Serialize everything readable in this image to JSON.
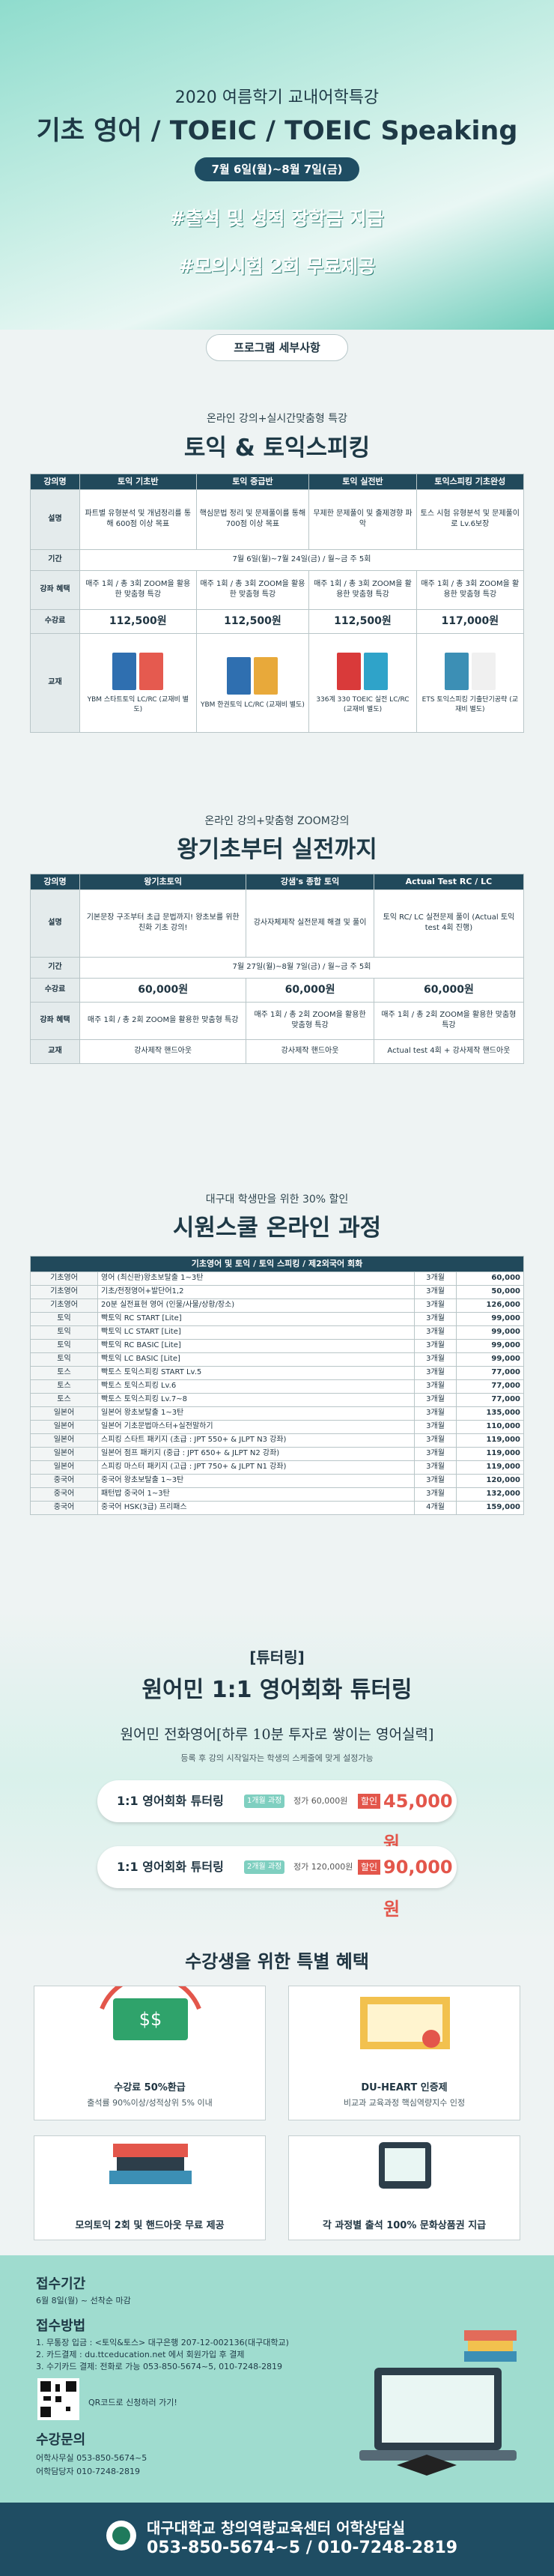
{
  "header": {
    "year_title": "2020 여름학기 교내어학특강",
    "main_title": "기초 영어 / TOEIC / TOEIC Speaking",
    "date": "7월 6일(월)~8월 7일(금)",
    "tag1": "#출석 및 성적 장학금 지급",
    "tag2": "#모의시험 2회 무료제공"
  },
  "program_heading": "프로그램 세부사항",
  "section1": {
    "subtitle": "온라인 강의+실시간맞춤형 특강",
    "title": "토익 & 토익스피킹",
    "table": {
      "headers": [
        "강의명",
        "토익 기초반",
        "토익 중급반",
        "토익 실전반",
        "토익스피킹 기초완성"
      ],
      "rows": [
        {
          "label": "설명",
          "cells": [
            "파트별 유형분석 및 개념정리를 통해 600점 이상 목표",
            "핵심문법 정리 및 문제풀이를 통해 700점 이상 목표",
            "무제한 문제풀이 및 출제경향 파악",
            "토스 시험 유형분석 및 문제풀이로 Lv.6보장"
          ]
        },
        {
          "label": "기간",
          "cells": [
            "7월 6일(월)~7월 24일(금) / 월~금 주 5회"
          ]
        },
        {
          "label": "강좌 혜택",
          "cells": [
            "매주 1회 / 총 3회 ZOOM을 활용한 맞춤형 특강",
            "매주 1회 / 총 3회 ZOOM을 활용한 맞춤형 특강",
            "매주 1회 / 총 3회 ZOOM을 활용한 맞춤형 특강",
            "매주 1회 / 총 3회 ZOOM을 활용한 맞춤형 특강"
          ]
        },
        {
          "label": "수강료",
          "cells": [
            "112,500원",
            "112,500원",
            "112,500원",
            "117,000원"
          ]
        },
        {
          "label": "교재",
          "cells": [
            "YBM 스타트토익 LC/RC (교재비 별도)",
            "YBM 한권토익 LC/RC (교재비 별도)",
            "336계 330 TOEIC 실전 LC/RC (교재비 별도)",
            "ETS 토익스피킹 기출단기공략 (교재비 별도)"
          ]
        }
      ]
    }
  },
  "section2": {
    "subtitle": "온라인 강의+맞춤형 ZOOM강의",
    "title": "왕기초부터 실전까지",
    "table": {
      "headers": [
        "강의명",
        "왕기초토익",
        "강샘's 종합 토익",
        "Actual Test RC / LC"
      ],
      "rows": [
        {
          "label": "설명",
          "cells": [
            "기본문장 구조부터 초급 문법까지! 왕초보를 위한 친화 기초 강의!",
            "강사자체제작 실전문제 해결 및 풀이",
            "토익 RC/ LC 실전문제 풀이 (Actual 토익 test 4회 진행)"
          ]
        },
        {
          "label": "기간",
          "cells": [
            "7월 27일(월)~8월 7일(금) / 월~금 주 5회"
          ]
        },
        {
          "label": "수강료",
          "cells": [
            "60,000원",
            "60,000원",
            "60,000원"
          ]
        },
        {
          "label": "강좌 혜택",
          "cells": [
            "매주 1회 / 총 2회 ZOOM을 활용한 맞춤형 특강",
            "매주 1회 / 총 2회 ZOOM을 활용한 맞춤형 특강",
            "매주 1회 / 총 2회 ZOOM을 활용한 맞춤형 특강"
          ]
        },
        {
          "label": "교재",
          "cells": [
            "강사제작 핸드아웃",
            "강사제작 핸드아웃",
            "Actual test 4회 + 강사제작 핸드아웃"
          ]
        }
      ]
    }
  },
  "section3": {
    "subtitle": "대구대 학생만을 위한 30% 할인",
    "title": "시원스쿨 온라인 과정",
    "table": {
      "header": "기초영어 및 토익 / 토익 스피킹 / 제2외국어 회화",
      "rows": [
        [
          "기초영어",
          "영어 (최신판)왕초보탈출 1~3탄",
          "3개월",
          "60,000"
        ],
        [
          "기초영어",
          "기초/전정영어+발단어1,2",
          "3개월",
          "50,000"
        ],
        [
          "기초영어",
          "20분 실전표현 영어 (인물/사물/상황/장소)",
          "3개월",
          "126,000"
        ],
        [
          "토익",
          "빡토익 RC START [Lite]",
          "3개월",
          "99,000"
        ],
        [
          "토익",
          "빡토익 LC START [Lite]",
          "3개월",
          "99,000"
        ],
        [
          "토익",
          "빡토익 RC BASIC [Lite]",
          "3개월",
          "99,000"
        ],
        [
          "토익",
          "빡토익 LC BASIC [Lite]",
          "3개월",
          "99,000"
        ],
        [
          "토스",
          "빡토스 토익스피킹 START Lv.5",
          "3개월",
          "77,000"
        ],
        [
          "토스",
          "빡토스 토익스피킹 Lv.6",
          "3개월",
          "77,000"
        ],
        [
          "토스",
          "빡토스 토익스피킹 Lv.7~8",
          "3개월",
          "77,000"
        ],
        [
          "일본어",
          "일본어 왕초보탈출 1~3탄",
          "3개월",
          "135,000"
        ],
        [
          "일본어",
          "일본어 기초문법마스터+실전말하기",
          "3개월",
          "110,000"
        ],
        [
          "일본어",
          "스피킹 스타트 패키지 (초급 : JPT 550+ & JLPT N3 강좌)",
          "3개월",
          "119,000"
        ],
        [
          "일본어",
          "일본어 점프 패키지 (중급 : JPT 650+ & JLPT N2 강좌)",
          "3개월",
          "119,000"
        ],
        [
          "일본어",
          "스피킹 마스터 패키지 (고급 : JPT 750+ & JLPT N1 강좌)",
          "3개월",
          "119,000"
        ],
        [
          "중국어",
          "중국어 왕초보탈출 1~3탄",
          "3개월",
          "120,000"
        ],
        [
          "중국어",
          "패턴밥 중국어 1~3탄",
          "3개월",
          "132,000"
        ],
        [
          "중국어",
          "중국어 HSK(3급) 프리패스",
          "4개월",
          "159,000"
        ]
      ]
    }
  },
  "tutoring": {
    "tag": "[튜터링]",
    "title": "원어민 1:1 영어회화 튜터링",
    "handwriting": "원어민 전화영어[하루 10분 투자로 쌓이는 영어실력]",
    "note": "등록 후 강의 시작일자는 학생의 스케줄에 맞게 설정가능",
    "offers": [
      {
        "name": "1:1 영어회화 튜터링",
        "unit": "1개월 과정",
        "list_price": "정가 60,000원",
        "discount": "할인",
        "price": "45,000원"
      },
      {
        "name": "1:1 영어회화 튜터링",
        "unit": "2개월 과정",
        "list_price": "정가 120,000원",
        "discount": "할인",
        "price": "90,000원"
      }
    ]
  },
  "benefits": {
    "title": "수강생을 위한 특별 혜택",
    "items": [
      {
        "title": "수강료 50%환급",
        "desc": "출석률 90%이상/성적상위 5% 이내"
      },
      {
        "title": "DU-HEART 인증제",
        "desc": "비교과 교육과정 핵심역량지수 인정"
      },
      {
        "title": "모의토익 2회 및 핸드아웃 무료 제공"
      },
      {
        "title": "각 과정별 출석 100% 문화상품권 지급"
      }
    ]
  },
  "footer": {
    "period_title": "접수기간",
    "period": "6월 8일(월) ~ 선착순 마감",
    "method_title": "접수방법",
    "method_lines": [
      "1. 무통장 입금 : <토익&토스> 대구은행 207-12-002136(대구대학교)",
      "2. 카드결제 : du.ttceducation.net 에서 회원가입 후 결제",
      "3. 수기카드 결제: 전화로 가능 053-850-5674~5, 010-7248-2819"
    ],
    "qr_label": "QR코드로 신청하러 가기!",
    "contact_title": "수강문의",
    "contact_lines": [
      "어학사무실 053-850-5674~5",
      "어학담당자 010-7248-2819"
    ],
    "org": "대구대학교 창의역량교육센터 어학상담실",
    "phone": "053-850-5674~5 / 010-7248-2819"
  }
}
